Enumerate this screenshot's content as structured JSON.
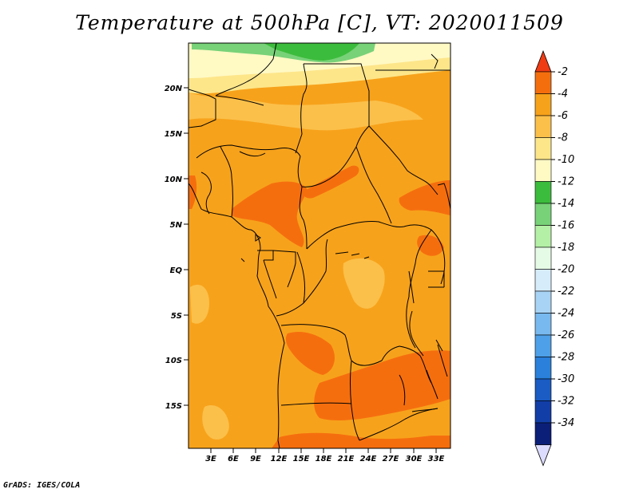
{
  "title": "Temperature at 500hPa [C], VT: 2020011509",
  "credit": "GrADS: IGES/COLA",
  "map": {
    "lat_labels": [
      "20N",
      "15N",
      "10N",
      "5N",
      "EQ",
      "5S",
      "10S",
      "15S"
    ],
    "lon_labels": [
      "3E",
      "6E",
      "9E",
      "12E",
      "15E",
      "18E",
      "21E",
      "24E",
      "27E",
      "30E",
      "33E"
    ]
  },
  "colorbar": {
    "labels": [
      "-2",
      "-4",
      "-6",
      "-8",
      "-10",
      "-12",
      "-14",
      "-16",
      "-18",
      "-20",
      "-22",
      "-24",
      "-26",
      "-28",
      "-30",
      "-32",
      "-34"
    ],
    "colors": [
      "#f03c14",
      "#f56e0e",
      "#f7a21b",
      "#fbc04a",
      "#fde68a",
      "#fff9c4",
      "#3cbc3c",
      "#78d278",
      "#b4f0a6",
      "#e6fbe6",
      "#d6ecfb",
      "#a8d3f4",
      "#78b9ef",
      "#4ea0e8",
      "#2a80db",
      "#1a5cc4",
      "#123ea8",
      "#0b1f78",
      "#dcdcff"
    ]
  }
}
